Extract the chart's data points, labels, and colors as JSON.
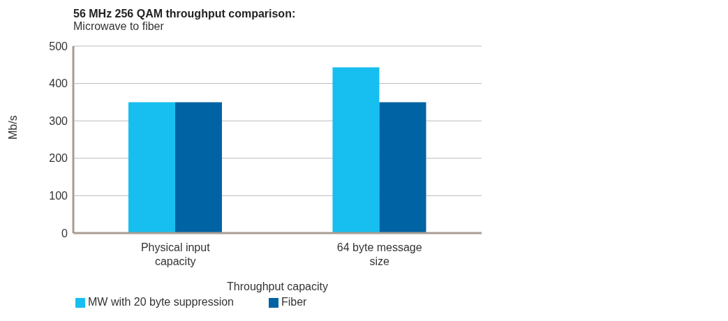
{
  "chart_data": {
    "type": "bar",
    "title": "56 MHz 256 QAM throughput comparison:",
    "subtitle": "Microwave to fiber",
    "xlabel": "Throughput capacity",
    "ylabel": "Mb/s",
    "categories": [
      "Physical input capacity",
      "64 byte message size"
    ],
    "series": [
      {
        "name": "MW with 20 byte suppression",
        "color": "#17bef0",
        "values": [
          350,
          443
        ]
      },
      {
        "name": "Fiber",
        "color": "#0063a3",
        "values": [
          350,
          350
        ]
      }
    ],
    "ylim": [
      0,
      500
    ],
    "yticks": [
      0,
      100,
      200,
      300,
      400,
      500
    ],
    "grid": "y",
    "legend": "bottom"
  }
}
